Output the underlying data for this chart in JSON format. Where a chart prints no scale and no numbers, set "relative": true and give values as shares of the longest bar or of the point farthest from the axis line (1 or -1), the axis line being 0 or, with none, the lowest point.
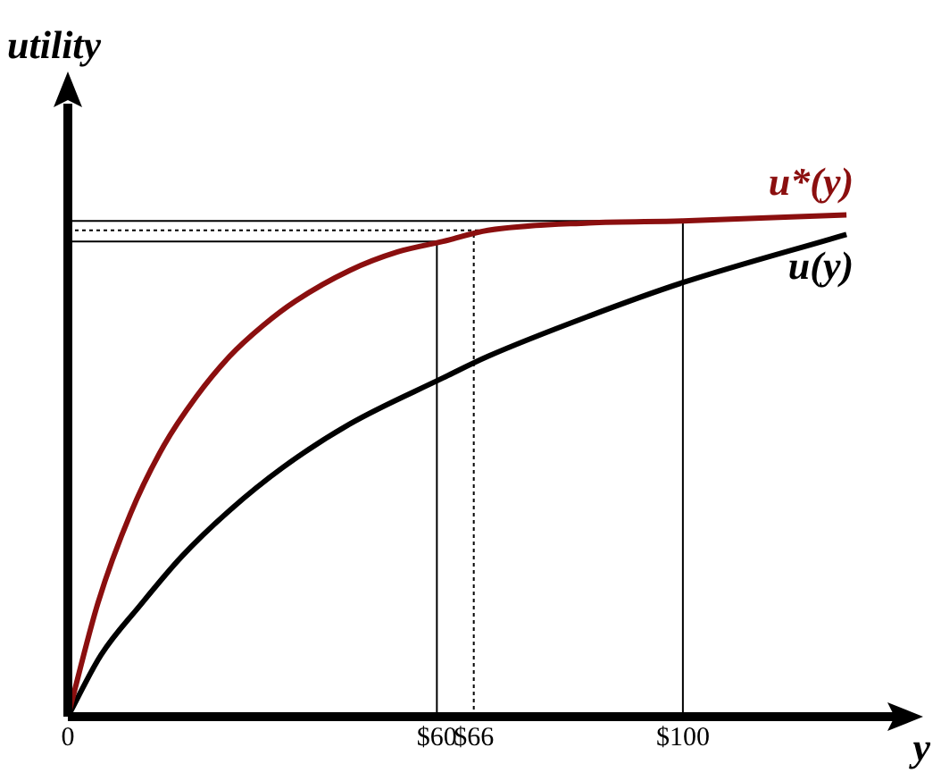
{
  "chart_data": {
    "type": "line",
    "relative": true,
    "ylabel": "utility",
    "xlabel": "y",
    "xlim": [
      0,
      135
    ],
    "xticks": [
      0,
      {
        "value": 60,
        "label": "$60"
      },
      {
        "value": 66,
        "label": "$66"
      },
      {
        "value": 100,
        "label": "$100"
      }
    ],
    "grid": false,
    "legend": false,
    "marker": "none",
    "series": [
      {
        "name": "u*(y)",
        "color": "#8b0f0f",
        "x": [
          0,
          4.9,
          10.2,
          15.6,
          20.9,
          26.3,
          31.7,
          37,
          45.8,
          53.6,
          61,
          68.3,
          84.7,
          100,
          126.6
        ],
        "values": [
          0,
          0.227,
          0.405,
          0.54,
          0.638,
          0.718,
          0.779,
          0.828,
          0.889,
          0.926,
          0.947,
          0.969,
          0.984,
          0.988,
          1
        ]
      },
      {
        "name": "u(y)",
        "color": "#000000",
        "x": [
          0,
          5.4,
          11.7,
          18.5,
          26.3,
          35,
          45.8,
          61,
          68.3,
          84.7,
          100,
          126.6
        ],
        "values": [
          0,
          0.123,
          0.221,
          0.319,
          0.411,
          0.497,
          0.583,
          0.675,
          0.718,
          0.798,
          0.865,
          0.961
        ]
      }
    ],
    "ref_lines": [
      {
        "axis": "x",
        "value": 60
      },
      {
        "axis": "x",
        "value": 66,
        "line_style": "dotted"
      },
      {
        "axis": "x",
        "value": 100
      },
      {
        "axis": "y",
        "value": 0.947
      },
      {
        "axis": "y",
        "value": 0.969,
        "line_style": "dotted"
      },
      {
        "axis": "y",
        "value": 0.988
      }
    ]
  }
}
